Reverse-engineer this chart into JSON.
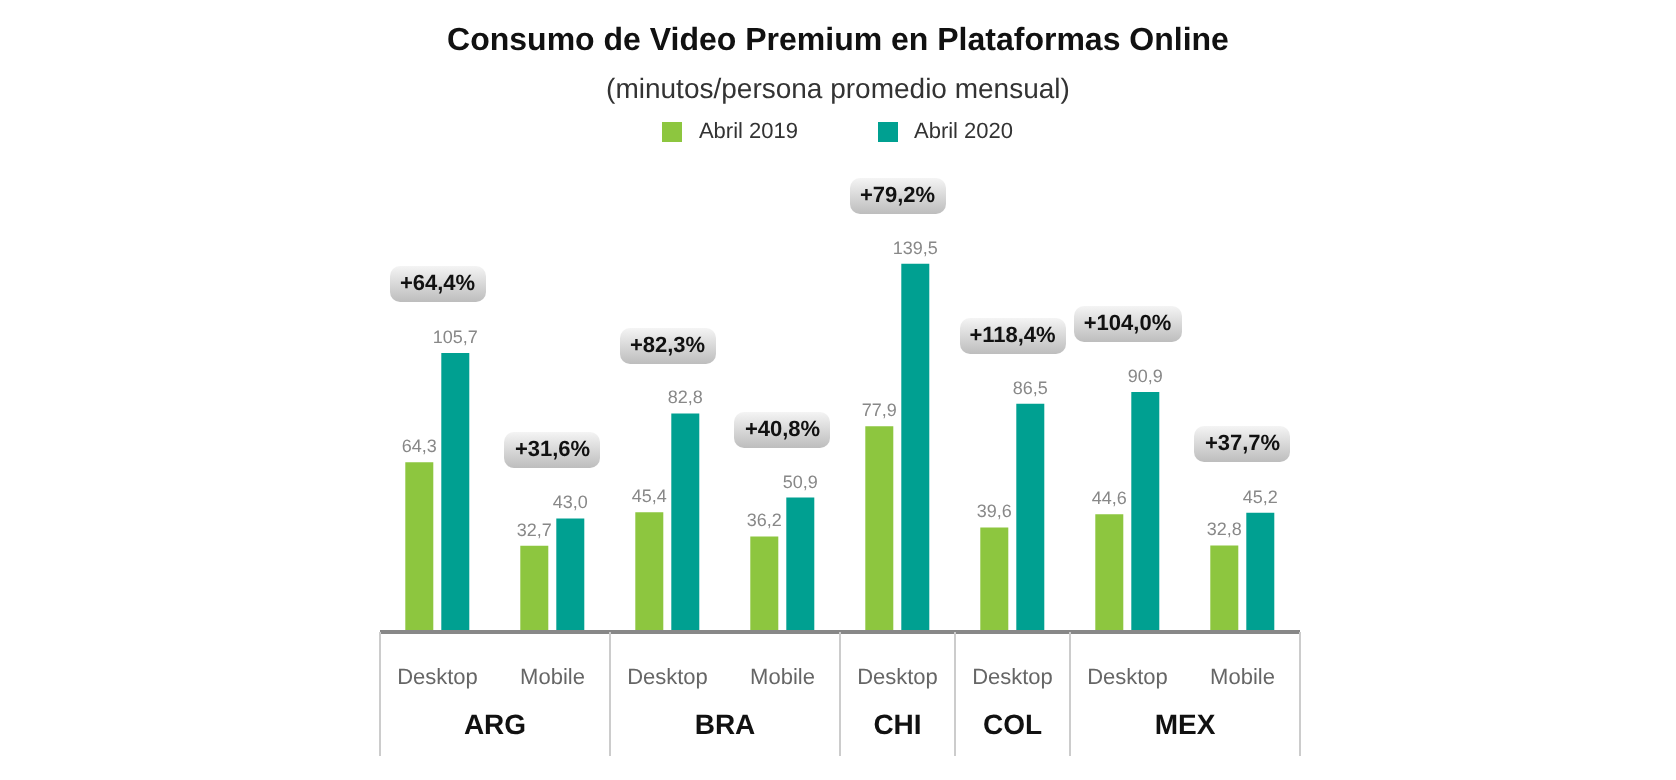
{
  "chart_data": {
    "type": "bar",
    "title": "Consumo de Video Premium en Plataformas Online",
    "subtitle": "(minutos/persona promedio mensual)",
    "categories": [
      "Desktop",
      "Mobile",
      "Desktop",
      "Mobile",
      "Desktop",
      "Desktop",
      "Desktop",
      "Mobile"
    ],
    "series": [
      {
        "name": "Abril 2019",
        "color": "#8dc63f",
        "values": [
          64.3,
          32.7,
          45.4,
          36.2,
          77.9,
          39.6,
          44.6,
          32.8
        ],
        "value_labels": [
          "64,3",
          "32,7",
          "45,4",
          "36,2",
          "77,9",
          "39,6",
          "44,6",
          "32,8"
        ]
      },
      {
        "name": "Abril 2020",
        "color": "#00a091",
        "values": [
          105.7,
          43.0,
          82.8,
          50.9,
          139.5,
          86.5,
          90.9,
          45.2
        ],
        "value_labels": [
          "105,7",
          "43,0",
          "82,8",
          "50,9",
          "139,5",
          "86,5",
          "90,9",
          "45,2"
        ]
      }
    ],
    "tick_labels": "x",
    "legend": "top",
    "annotations": [
      "+64,4%",
      "+31,6%",
      "+82,3%",
      "+40,8%",
      "+79,2%",
      "+118,4%",
      "+104,0%",
      "+37,7%",
      "ARG",
      "BRA",
      "CHI",
      "COL",
      "MEX"
    ]
  }
}
